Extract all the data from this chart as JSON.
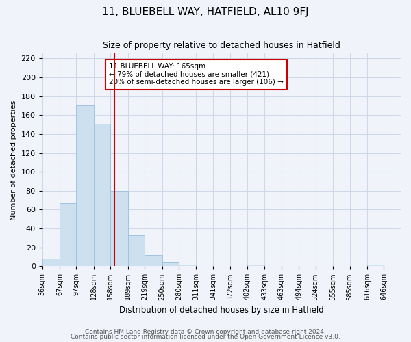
{
  "title": "11, BLUEBELL WAY, HATFIELD, AL10 9FJ",
  "subtitle": "Size of property relative to detached houses in Hatfield",
  "xlabel": "Distribution of detached houses by size in Hatfield",
  "ylabel": "Number of detached properties",
  "footer1": "Contains HM Land Registry data © Crown copyright and database right 2024.",
  "footer2": "Contains public sector information licensed under the Open Government Licence v3.0.",
  "bin_edges": [
    36,
    67,
    97,
    128,
    158,
    189,
    219,
    250,
    280,
    311,
    341,
    372,
    402,
    433,
    463,
    494,
    524,
    555,
    585,
    616,
    646
  ],
  "bar_heights": [
    8,
    67,
    170,
    151,
    80,
    33,
    12,
    5,
    2,
    0,
    0,
    0,
    2,
    0,
    0,
    0,
    0,
    0,
    0,
    2
  ],
  "bar_color": "#cce0f0",
  "bar_edge_color": "#a0c4e0",
  "grid_color": "#d0d8e8",
  "vline_x": 165,
  "vline_color": "#cc0000",
  "annotation_title": "11 BLUEBELL WAY: 165sqm",
  "annotation_line1": "← 79% of detached houses are smaller (421)",
  "annotation_line2": "20% of semi-detached houses are larger (106) →",
  "annotation_box_color": "#cc0000",
  "ylim": [
    0,
    225
  ],
  "yticks": [
    0,
    20,
    40,
    60,
    80,
    100,
    120,
    140,
    160,
    180,
    200,
    220
  ],
  "bg_color": "#f0f4fa"
}
